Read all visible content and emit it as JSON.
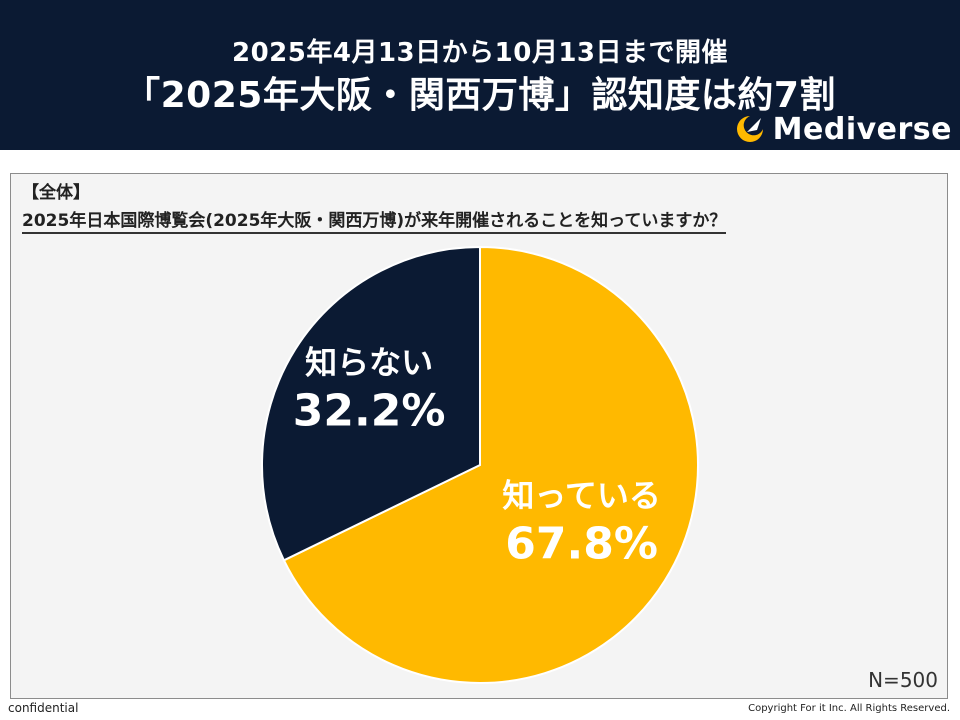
{
  "header": {
    "subtitle": "2025年4月13日から10月13日まで開催",
    "title": "「2025年大阪・関西万博」認知度は約7割",
    "logo_text": "Mediverse"
  },
  "panel": {
    "section_label": "【全体】",
    "question": "2025年日本国際博覧会(2025年大阪・関西万博)が来年開催されることを知っていますか？",
    "n_label": "N=500"
  },
  "chart_data": {
    "type": "pie",
    "title": "2025年日本国際博覧会(2025年大阪・関西万博)が来年開催されることを知っていますか？",
    "slices": [
      {
        "label": "知っている",
        "value": 67.8,
        "value_label": "67.8%",
        "color": "#ffb900"
      },
      {
        "label": "知らない",
        "value": 32.2,
        "value_label": "32.2%",
        "color": "#0b1a33"
      }
    ],
    "start_angle": "12 o'clock",
    "direction": "clockwise"
  },
  "footer": {
    "left": "confidential",
    "right": "Copyright For it Inc. All Rights Reserved."
  }
}
